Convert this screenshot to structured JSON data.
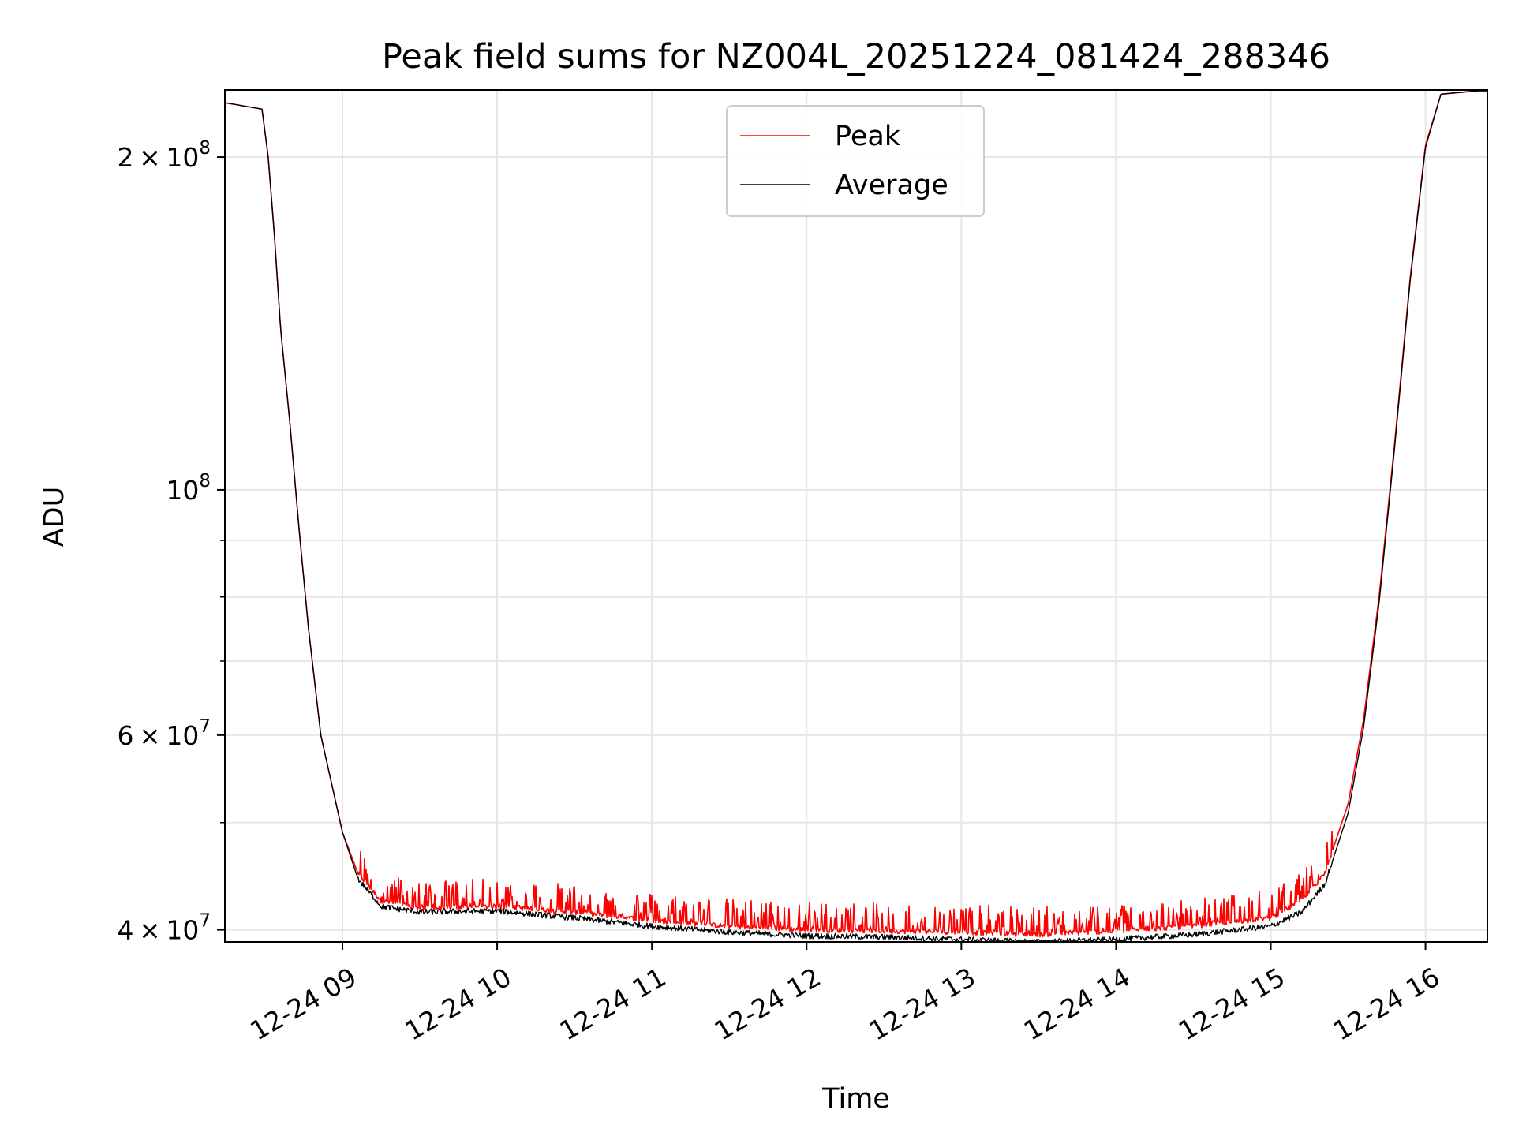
{
  "chart_data": {
    "type": "line",
    "title": "Peak field sums for NZ004L_20251224_081424_288346",
    "xlabel": "Time",
    "ylabel": "ADU",
    "yscale": "log",
    "ylim": [
      39000000,
      230000000
    ],
    "xlim_hours": [
      8.24,
      16.4
    ],
    "grid": true,
    "legend_position": "upper-center",
    "x_ticks": [
      {
        "hour": 9,
        "label": "12-24 09"
      },
      {
        "hour": 10,
        "label": "12-24 10"
      },
      {
        "hour": 11,
        "label": "12-24 11"
      },
      {
        "hour": 12,
        "label": "12-24 12"
      },
      {
        "hour": 13,
        "label": "12-24 13"
      },
      {
        "hour": 14,
        "label": "12-24 14"
      },
      {
        "hour": 15,
        "label": "12-24 15"
      },
      {
        "hour": 16,
        "label": "12-24 16"
      }
    ],
    "y_ticks": [
      {
        "value": 40000000,
        "base": "4",
        "exp": "7",
        "mantissa": true
      },
      {
        "value": 60000000,
        "base": "6",
        "exp": "7",
        "mantissa": true
      },
      {
        "value": 100000000,
        "base": "10",
        "exp": "8",
        "mantissa": false
      },
      {
        "value": 200000000,
        "base": "2",
        "exp": "8",
        "mantissa": true
      }
    ],
    "y_minor_ticks": [
      50000000,
      70000000,
      80000000,
      90000000
    ],
    "series": [
      {
        "name": "Peak",
        "color": "#ff0000",
        "noise": "spiky",
        "points": [
          [
            8.24,
            224000000
          ],
          [
            8.4,
            222000000
          ],
          [
            8.48,
            221000000
          ],
          [
            8.52,
            200000000
          ],
          [
            8.56,
            170000000
          ],
          [
            8.6,
            140000000
          ],
          [
            8.66,
            115000000
          ],
          [
            8.72,
            92000000
          ],
          [
            8.78,
            75000000
          ],
          [
            8.86,
            60000000
          ],
          [
            9.0,
            49000000
          ],
          [
            9.1,
            45000000
          ],
          [
            9.25,
            42500000
          ],
          [
            9.5,
            41800000
          ],
          [
            10.0,
            42000000
          ],
          [
            10.5,
            41500000
          ],
          [
            11.0,
            40800000
          ],
          [
            11.5,
            40300000
          ],
          [
            12.0,
            40000000
          ],
          [
            12.5,
            39900000
          ],
          [
            13.0,
            39800000
          ],
          [
            13.5,
            39600000
          ],
          [
            14.0,
            39900000
          ],
          [
            14.5,
            40300000
          ],
          [
            15.0,
            41000000
          ],
          [
            15.2,
            42500000
          ],
          [
            15.35,
            45000000
          ],
          [
            15.5,
            52000000
          ],
          [
            15.6,
            62000000
          ],
          [
            15.7,
            80000000
          ],
          [
            15.8,
            110000000
          ],
          [
            15.9,
            155000000
          ],
          [
            16.0,
            205000000
          ],
          [
            16.1,
            228000000
          ],
          [
            16.4,
            230000000
          ]
        ]
      },
      {
        "name": "Average",
        "color": "#000000",
        "noise": "small",
        "points": [
          [
            8.24,
            224000000
          ],
          [
            8.4,
            222000000
          ],
          [
            8.48,
            221000000
          ],
          [
            8.52,
            200000000
          ],
          [
            8.56,
            170000000
          ],
          [
            8.6,
            140000000
          ],
          [
            8.66,
            115000000
          ],
          [
            8.72,
            92000000
          ],
          [
            8.78,
            75000000
          ],
          [
            8.86,
            60000000
          ],
          [
            9.0,
            49000000
          ],
          [
            9.1,
            44500000
          ],
          [
            9.25,
            42000000
          ],
          [
            9.5,
            41500000
          ],
          [
            10.0,
            41600000
          ],
          [
            10.5,
            41000000
          ],
          [
            11.0,
            40300000
          ],
          [
            11.5,
            39800000
          ],
          [
            12.0,
            39500000
          ],
          [
            12.5,
            39400000
          ],
          [
            13.0,
            39200000
          ],
          [
            13.5,
            39000000
          ],
          [
            14.0,
            39200000
          ],
          [
            14.5,
            39600000
          ],
          [
            15.0,
            40300000
          ],
          [
            15.2,
            41500000
          ],
          [
            15.35,
            44000000
          ],
          [
            15.5,
            51000000
          ],
          [
            15.6,
            61000000
          ],
          [
            15.7,
            79000000
          ],
          [
            15.8,
            109000000
          ],
          [
            15.9,
            154000000
          ],
          [
            16.0,
            204000000
          ],
          [
            16.1,
            228000000
          ],
          [
            16.4,
            230000000
          ]
        ]
      }
    ]
  }
}
